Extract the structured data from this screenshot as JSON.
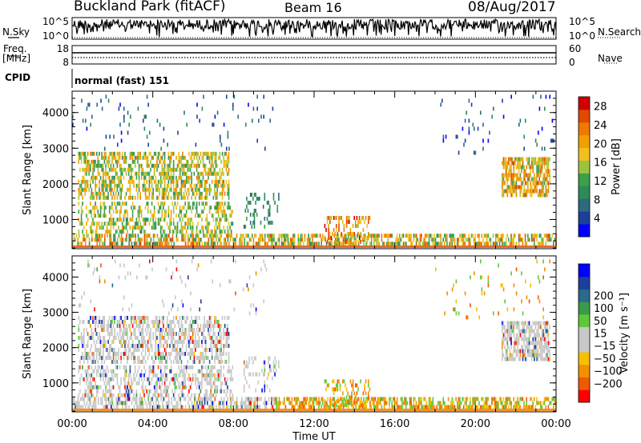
{
  "header": {
    "station": "Buckland Park (fitACF)",
    "beam": "Beam 16",
    "date": "08/Aug/2017"
  },
  "left_labels": {
    "nsky": "N.Sky",
    "freq_top": "Freq.",
    "freq_unit": "[MHz]",
    "cpid": "CPID",
    "noise_ticks": [
      "10^5",
      "10^0"
    ],
    "freq_ticks": [
      "18",
      "8"
    ]
  },
  "right_labels": {
    "nsearch": "N.Search",
    "nave": "Nave",
    "noise_ticks": [
      "10^5",
      "10^0"
    ],
    "nave_ticks": [
      "60",
      "0"
    ]
  },
  "cpid_text": "normal (fast) 151",
  "x_axis": {
    "label": "Time UT",
    "ticks": [
      "00:00",
      "04:00",
      "08:00",
      "12:00",
      "16:00",
      "20:00",
      "00:00"
    ]
  },
  "colors": {
    "power_scale": [
      "#0000ff",
      "#1c3f9a",
      "#2c6a80",
      "#2f8a5a",
      "#3aa04a",
      "#9cc43c",
      "#f0c020",
      "#f0a000",
      "#ee7a00",
      "#e04a00",
      "#d00000"
    ],
    "velocity_scale": [
      "#ff0000",
      "#ee5a00",
      "#f29000",
      "#f6c000",
      "#c8c8c8",
      "#c8c8c8",
      "#5ec83a",
      "#3a9a4a",
      "#2a6a8a",
      "#1c3f9a",
      "#0000ff"
    ]
  },
  "chart_data": [
    {
      "type": "heatmap",
      "name": "power",
      "xlabel": "",
      "ylabel": "Slant Range [km]",
      "yticks": [
        "1000",
        "2000",
        "3000",
        "4000"
      ],
      "ylim": [
        180,
        4600
      ],
      "xlim_hours": [
        0,
        24
      ],
      "colorbar": {
        "label": "Power [dB]",
        "ticks": [
          "4",
          "8",
          "12",
          "16",
          "20",
          "24",
          "28"
        ],
        "range": [
          0,
          30
        ]
      }
    },
    {
      "type": "heatmap",
      "name": "velocity",
      "xlabel": "Time UT",
      "ylabel": "Slant Range [km]",
      "yticks": [
        "1000",
        "2000",
        "3000",
        "4000"
      ],
      "ylim": [
        180,
        4600
      ],
      "xlim_hours": [
        0,
        24
      ],
      "colorbar": {
        "label": "Velocity [m s^-1]",
        "ticks": [
          "-200",
          "-100",
          "-50",
          "-15",
          "15",
          "50",
          "100",
          "200"
        ]
      }
    }
  ]
}
